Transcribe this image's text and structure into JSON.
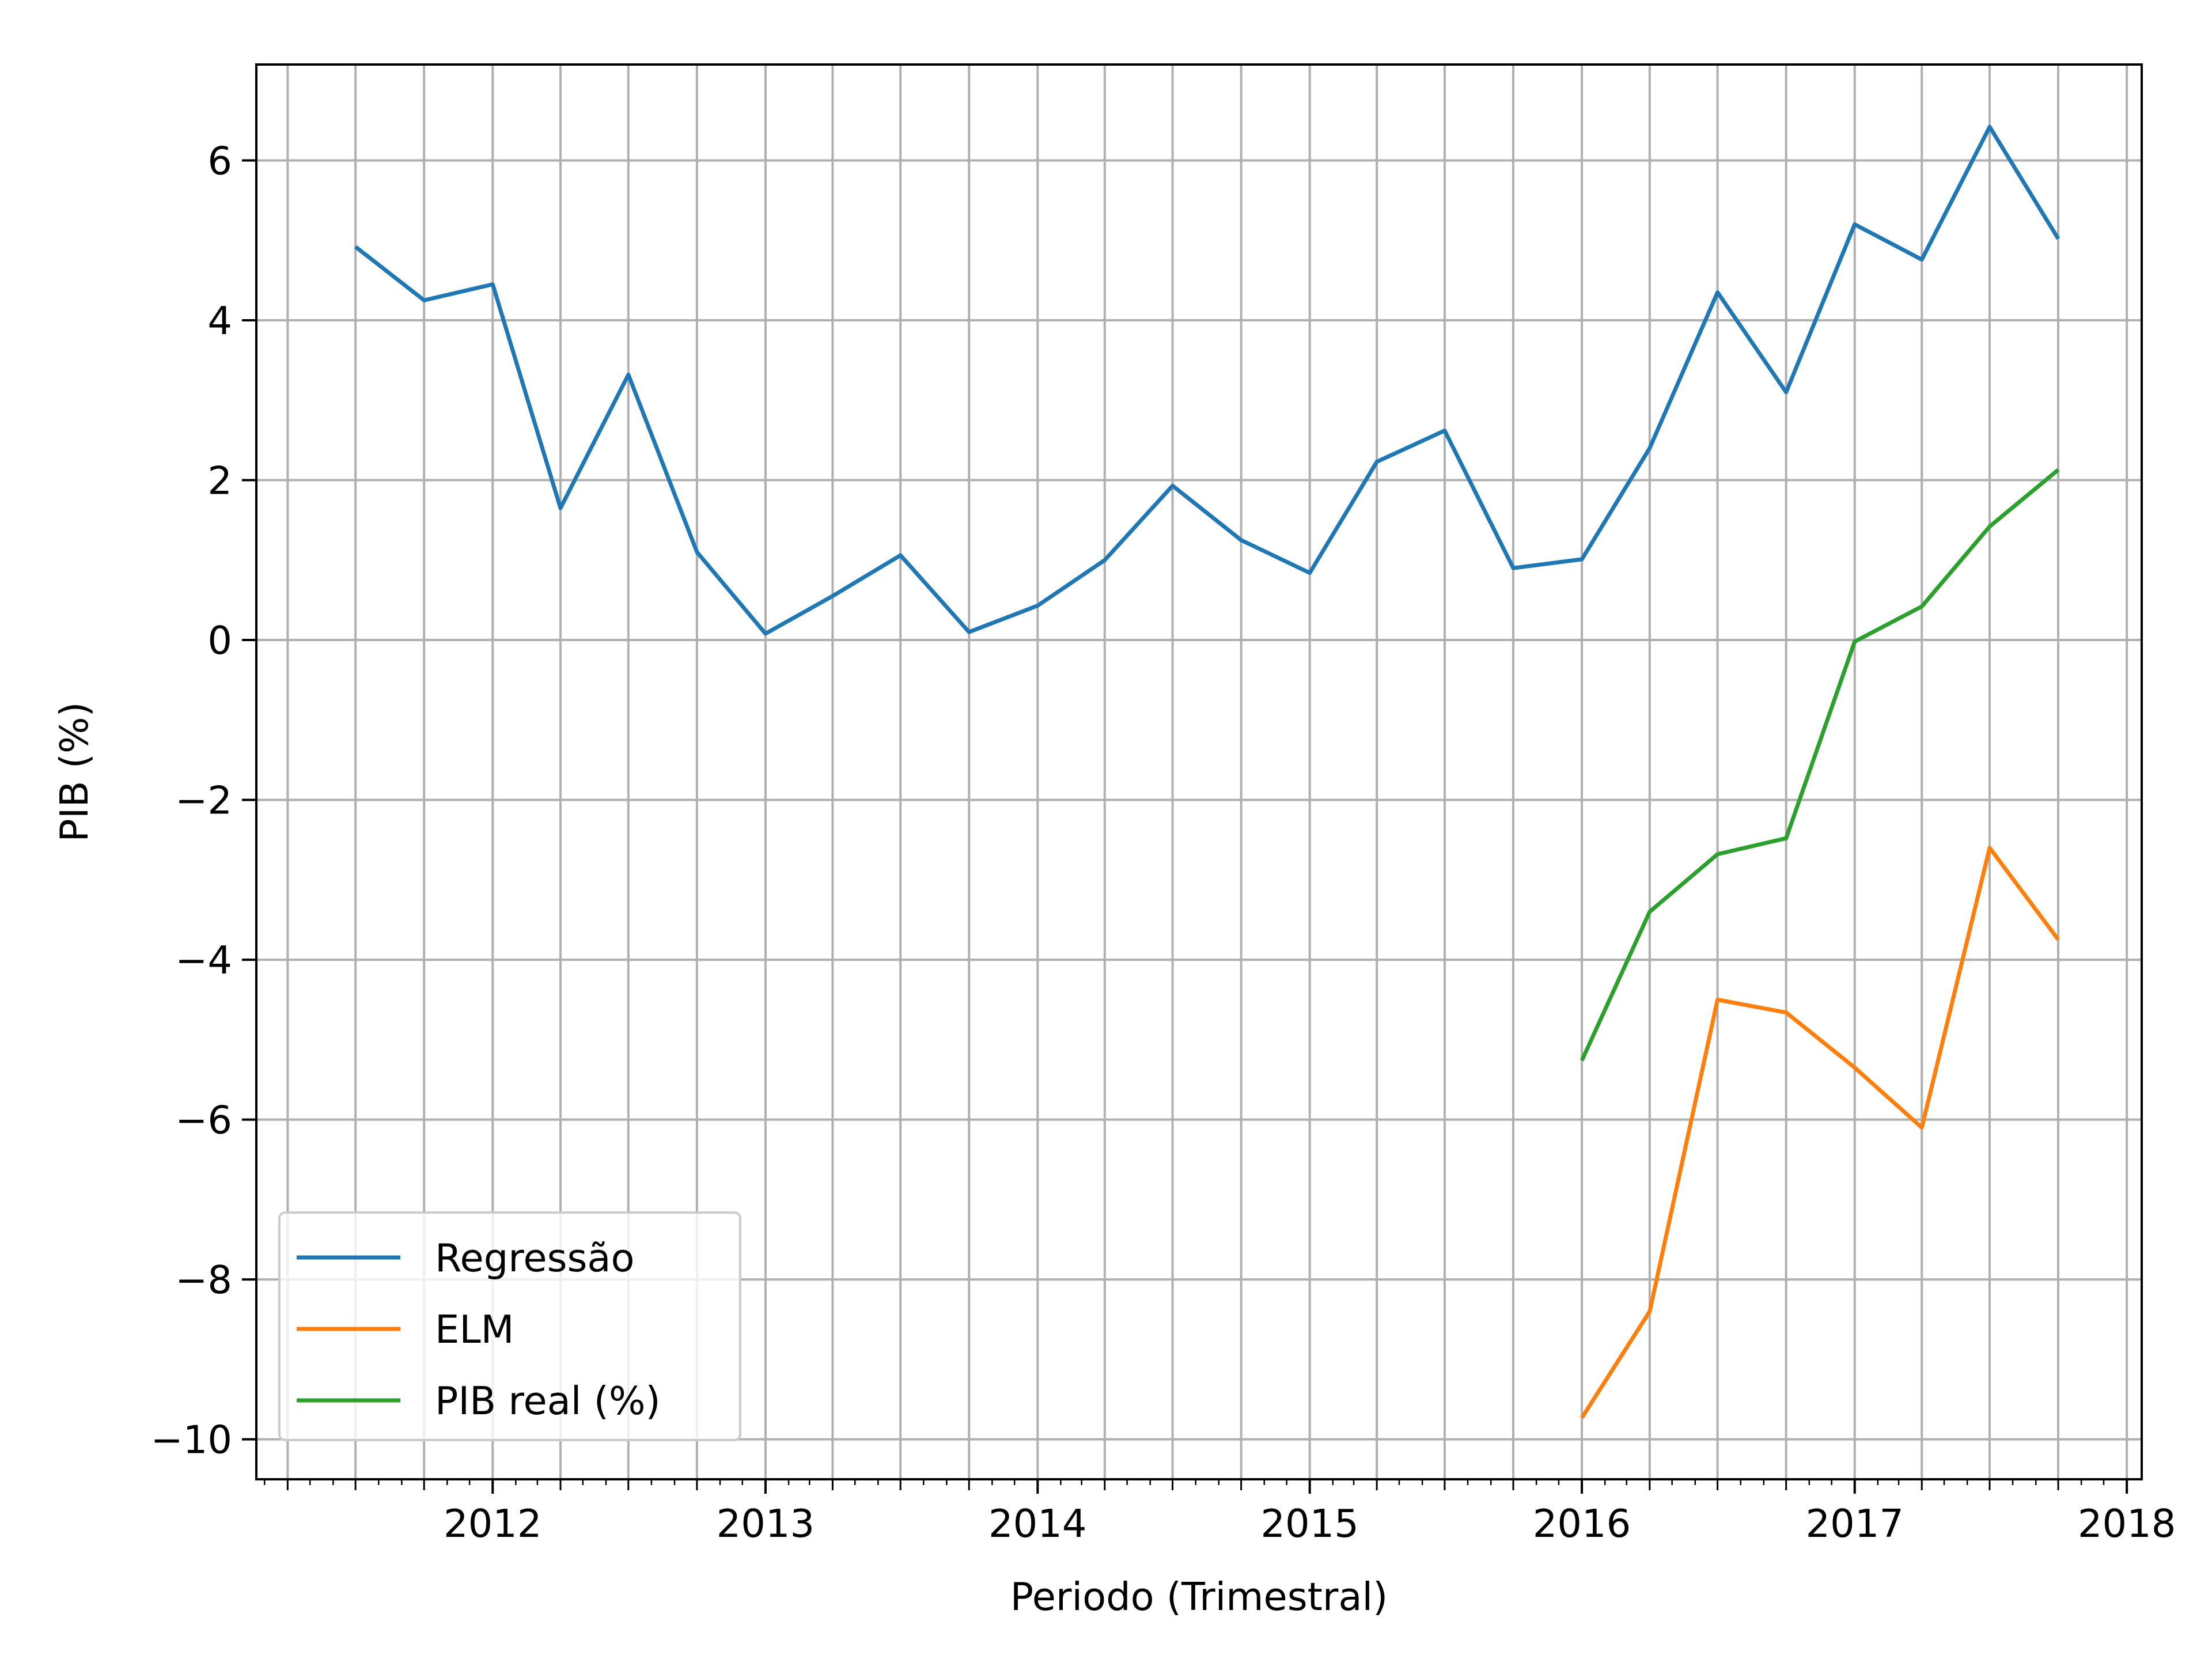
{
  "chart_data": {
    "type": "line",
    "xlabel": "Periodo (Trimestral)",
    "ylabel": "PIB (%)",
    "xlim": [
      "2011-02-18",
      "2018-01-21"
    ],
    "ylim": [
      -10.5,
      7.2
    ],
    "x_ticks": [
      {
        "date": "2012-01-01",
        "label": "2012"
      },
      {
        "date": "2013-01-01",
        "label": "2013"
      },
      {
        "date": "2014-01-01",
        "label": "2014"
      },
      {
        "date": "2015-01-01",
        "label": "2015"
      },
      {
        "date": "2016-01-01",
        "label": "2016"
      },
      {
        "date": "2017-01-01",
        "label": "2017"
      },
      {
        "date": "2018-01-01",
        "label": "2018"
      }
    ],
    "y_ticks": [
      {
        "value": 6,
        "label": "6"
      },
      {
        "value": 4,
        "label": "4"
      },
      {
        "value": 2,
        "label": "2"
      },
      {
        "value": 0,
        "label": "0"
      },
      {
        "value": -2,
        "label": "−2"
      },
      {
        "value": -4,
        "label": "−4"
      },
      {
        "value": -6,
        "label": "−6"
      },
      {
        "value": -8,
        "label": "−8"
      },
      {
        "value": -10,
        "label": "−10"
      }
    ],
    "grid": true,
    "legend_position": "lower-left",
    "series": [
      {
        "name": "Regressão",
        "color": "#1f77b4",
        "x": [
          "2011-07-01",
          "2011-10-01",
          "2012-01-01",
          "2012-04-01",
          "2012-07-01",
          "2012-10-01",
          "2013-01-01",
          "2013-04-01",
          "2013-07-01",
          "2013-10-01",
          "2014-01-01",
          "2014-04-01",
          "2014-07-01",
          "2014-10-01",
          "2015-01-01",
          "2015-04-01",
          "2015-07-01",
          "2015-10-01",
          "2016-01-01",
          "2016-04-01",
          "2016-07-01",
          "2016-10-01",
          "2017-01-01",
          "2017-04-01",
          "2017-07-01",
          "2017-10-01"
        ],
        "y": [
          4.92,
          4.25,
          4.45,
          1.65,
          3.32,
          1.1,
          0.08,
          0.55,
          1.06,
          0.1,
          0.43,
          1.0,
          1.93,
          1.25,
          0.84,
          2.23,
          2.62,
          0.9,
          1.01,
          2.4,
          4.35,
          3.1,
          5.2,
          4.76,
          6.42,
          5.02
        ]
      },
      {
        "name": "ELM",
        "color": "#ff7f0e",
        "x": [
          "2016-01-01",
          "2016-04-01",
          "2016-07-01",
          "2016-10-01",
          "2017-01-01",
          "2017-04-01",
          "2017-07-01",
          "2017-10-01"
        ],
        "y": [
          -9.73,
          -8.4,
          -4.5,
          -4.66,
          -5.35,
          -6.1,
          -2.6,
          -3.75
        ]
      },
      {
        "name": "PIB real (%)",
        "color": "#2ca02c",
        "x": [
          "2016-01-01",
          "2016-04-01",
          "2016-07-01",
          "2016-10-01",
          "2017-01-01",
          "2017-04-01",
          "2017-07-01",
          "2017-10-01"
        ],
        "y": [
          -5.26,
          -3.4,
          -2.68,
          -2.48,
          -0.02,
          0.42,
          1.42,
          2.13
        ]
      }
    ]
  }
}
